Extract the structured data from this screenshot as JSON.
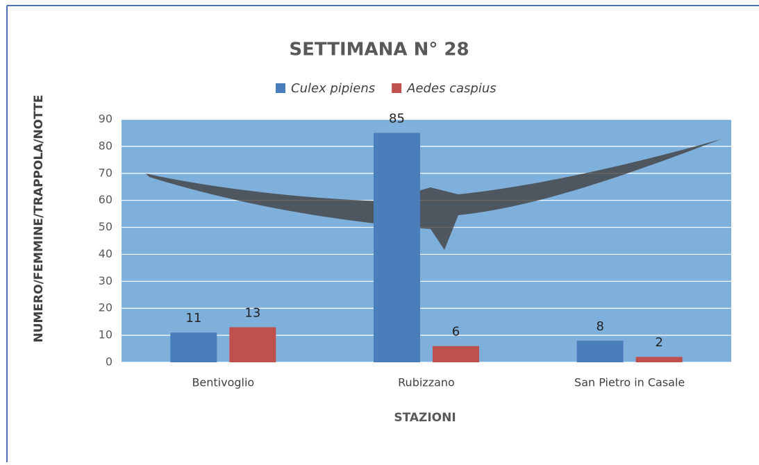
{
  "chart_data": {
    "type": "bar",
    "title": "SETTIMANA N° 28",
    "x_label": "STAZIONI",
    "y_label": "NUMERO/FEMMINE/TRAPPOLA/NOTTE",
    "categories": [
      "Bentivoglio",
      "Rubizzano",
      "San Pietro in Casale"
    ],
    "series": [
      {
        "name": "Culex pipiens",
        "color": "#4a7ebb",
        "values": [
          11,
          85,
          8
        ]
      },
      {
        "name": "Aedes caspius",
        "color": "#c0504d",
        "values": [
          13,
          6,
          2
        ]
      }
    ],
    "ylim": [
      0,
      90
    ],
    "yticks": [
      0,
      10,
      20,
      30,
      40,
      50,
      60,
      70,
      80,
      90
    ],
    "grid": true,
    "legend": "top"
  }
}
